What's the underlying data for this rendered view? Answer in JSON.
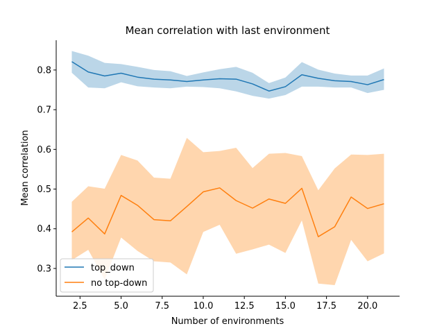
{
  "chart_data": {
    "type": "line",
    "title": "Mean correlation with last environment",
    "xlabel": "Number of environments",
    "ylabel": "Mean correlation",
    "xlim": [
      1.05,
      21.95
    ],
    "ylim": [
      0.23,
      0.875
    ],
    "xticks": [
      2.5,
      5.0,
      7.5,
      10.0,
      12.5,
      15.0,
      17.5,
      20.0
    ],
    "xtick_labels": [
      "2.5",
      "5.0",
      "7.5",
      "10.0",
      "12.5",
      "15.0",
      "17.5",
      "20.0"
    ],
    "yticks": [
      0.3,
      0.4,
      0.5,
      0.6,
      0.7,
      0.8
    ],
    "ytick_labels": [
      "0.3",
      "0.4",
      "0.5",
      "0.6",
      "0.7",
      "0.8"
    ],
    "grid": false,
    "legend_position": "lower-left",
    "x": [
      2,
      3,
      4,
      5,
      6,
      7,
      8,
      9,
      10,
      11,
      12,
      13,
      14,
      15,
      16,
      17,
      18,
      19,
      20,
      21
    ],
    "series": [
      {
        "name": "top_down",
        "color": "#1f77b4",
        "band_color": "#1f77b4",
        "values": [
          0.821,
          0.795,
          0.785,
          0.792,
          0.782,
          0.777,
          0.775,
          0.771,
          0.775,
          0.778,
          0.777,
          0.765,
          0.747,
          0.758,
          0.788,
          0.779,
          0.773,
          0.771,
          0.763,
          0.776
        ],
        "lower": [
          0.793,
          0.756,
          0.754,
          0.769,
          0.759,
          0.756,
          0.754,
          0.758,
          0.757,
          0.754,
          0.746,
          0.735,
          0.728,
          0.737,
          0.758,
          0.758,
          0.756,
          0.756,
          0.742,
          0.75
        ],
        "upper": [
          0.848,
          0.836,
          0.818,
          0.815,
          0.808,
          0.8,
          0.797,
          0.785,
          0.794,
          0.802,
          0.808,
          0.793,
          0.767,
          0.781,
          0.82,
          0.801,
          0.791,
          0.786,
          0.786,
          0.804
        ]
      },
      {
        "name": "no top-down",
        "color": "#ff7f0e",
        "band_color": "#ffbb78",
        "values": [
          0.392,
          0.427,
          0.387,
          0.484,
          0.459,
          0.423,
          0.42,
          0.456,
          0.493,
          0.503,
          0.471,
          0.452,
          0.475,
          0.464,
          0.502,
          0.38,
          0.405,
          0.48,
          0.451,
          0.463
        ],
        "lower": [
          0.321,
          0.347,
          0.272,
          0.378,
          0.344,
          0.318,
          0.315,
          0.285,
          0.392,
          0.41,
          0.337,
          0.348,
          0.36,
          0.339,
          0.421,
          0.262,
          0.258,
          0.372,
          0.318,
          0.338
        ],
        "upper": [
          0.468,
          0.507,
          0.501,
          0.586,
          0.572,
          0.529,
          0.526,
          0.629,
          0.593,
          0.596,
          0.604,
          0.553,
          0.589,
          0.591,
          0.583,
          0.497,
          0.552,
          0.587,
          0.586,
          0.589
        ]
      }
    ]
  }
}
